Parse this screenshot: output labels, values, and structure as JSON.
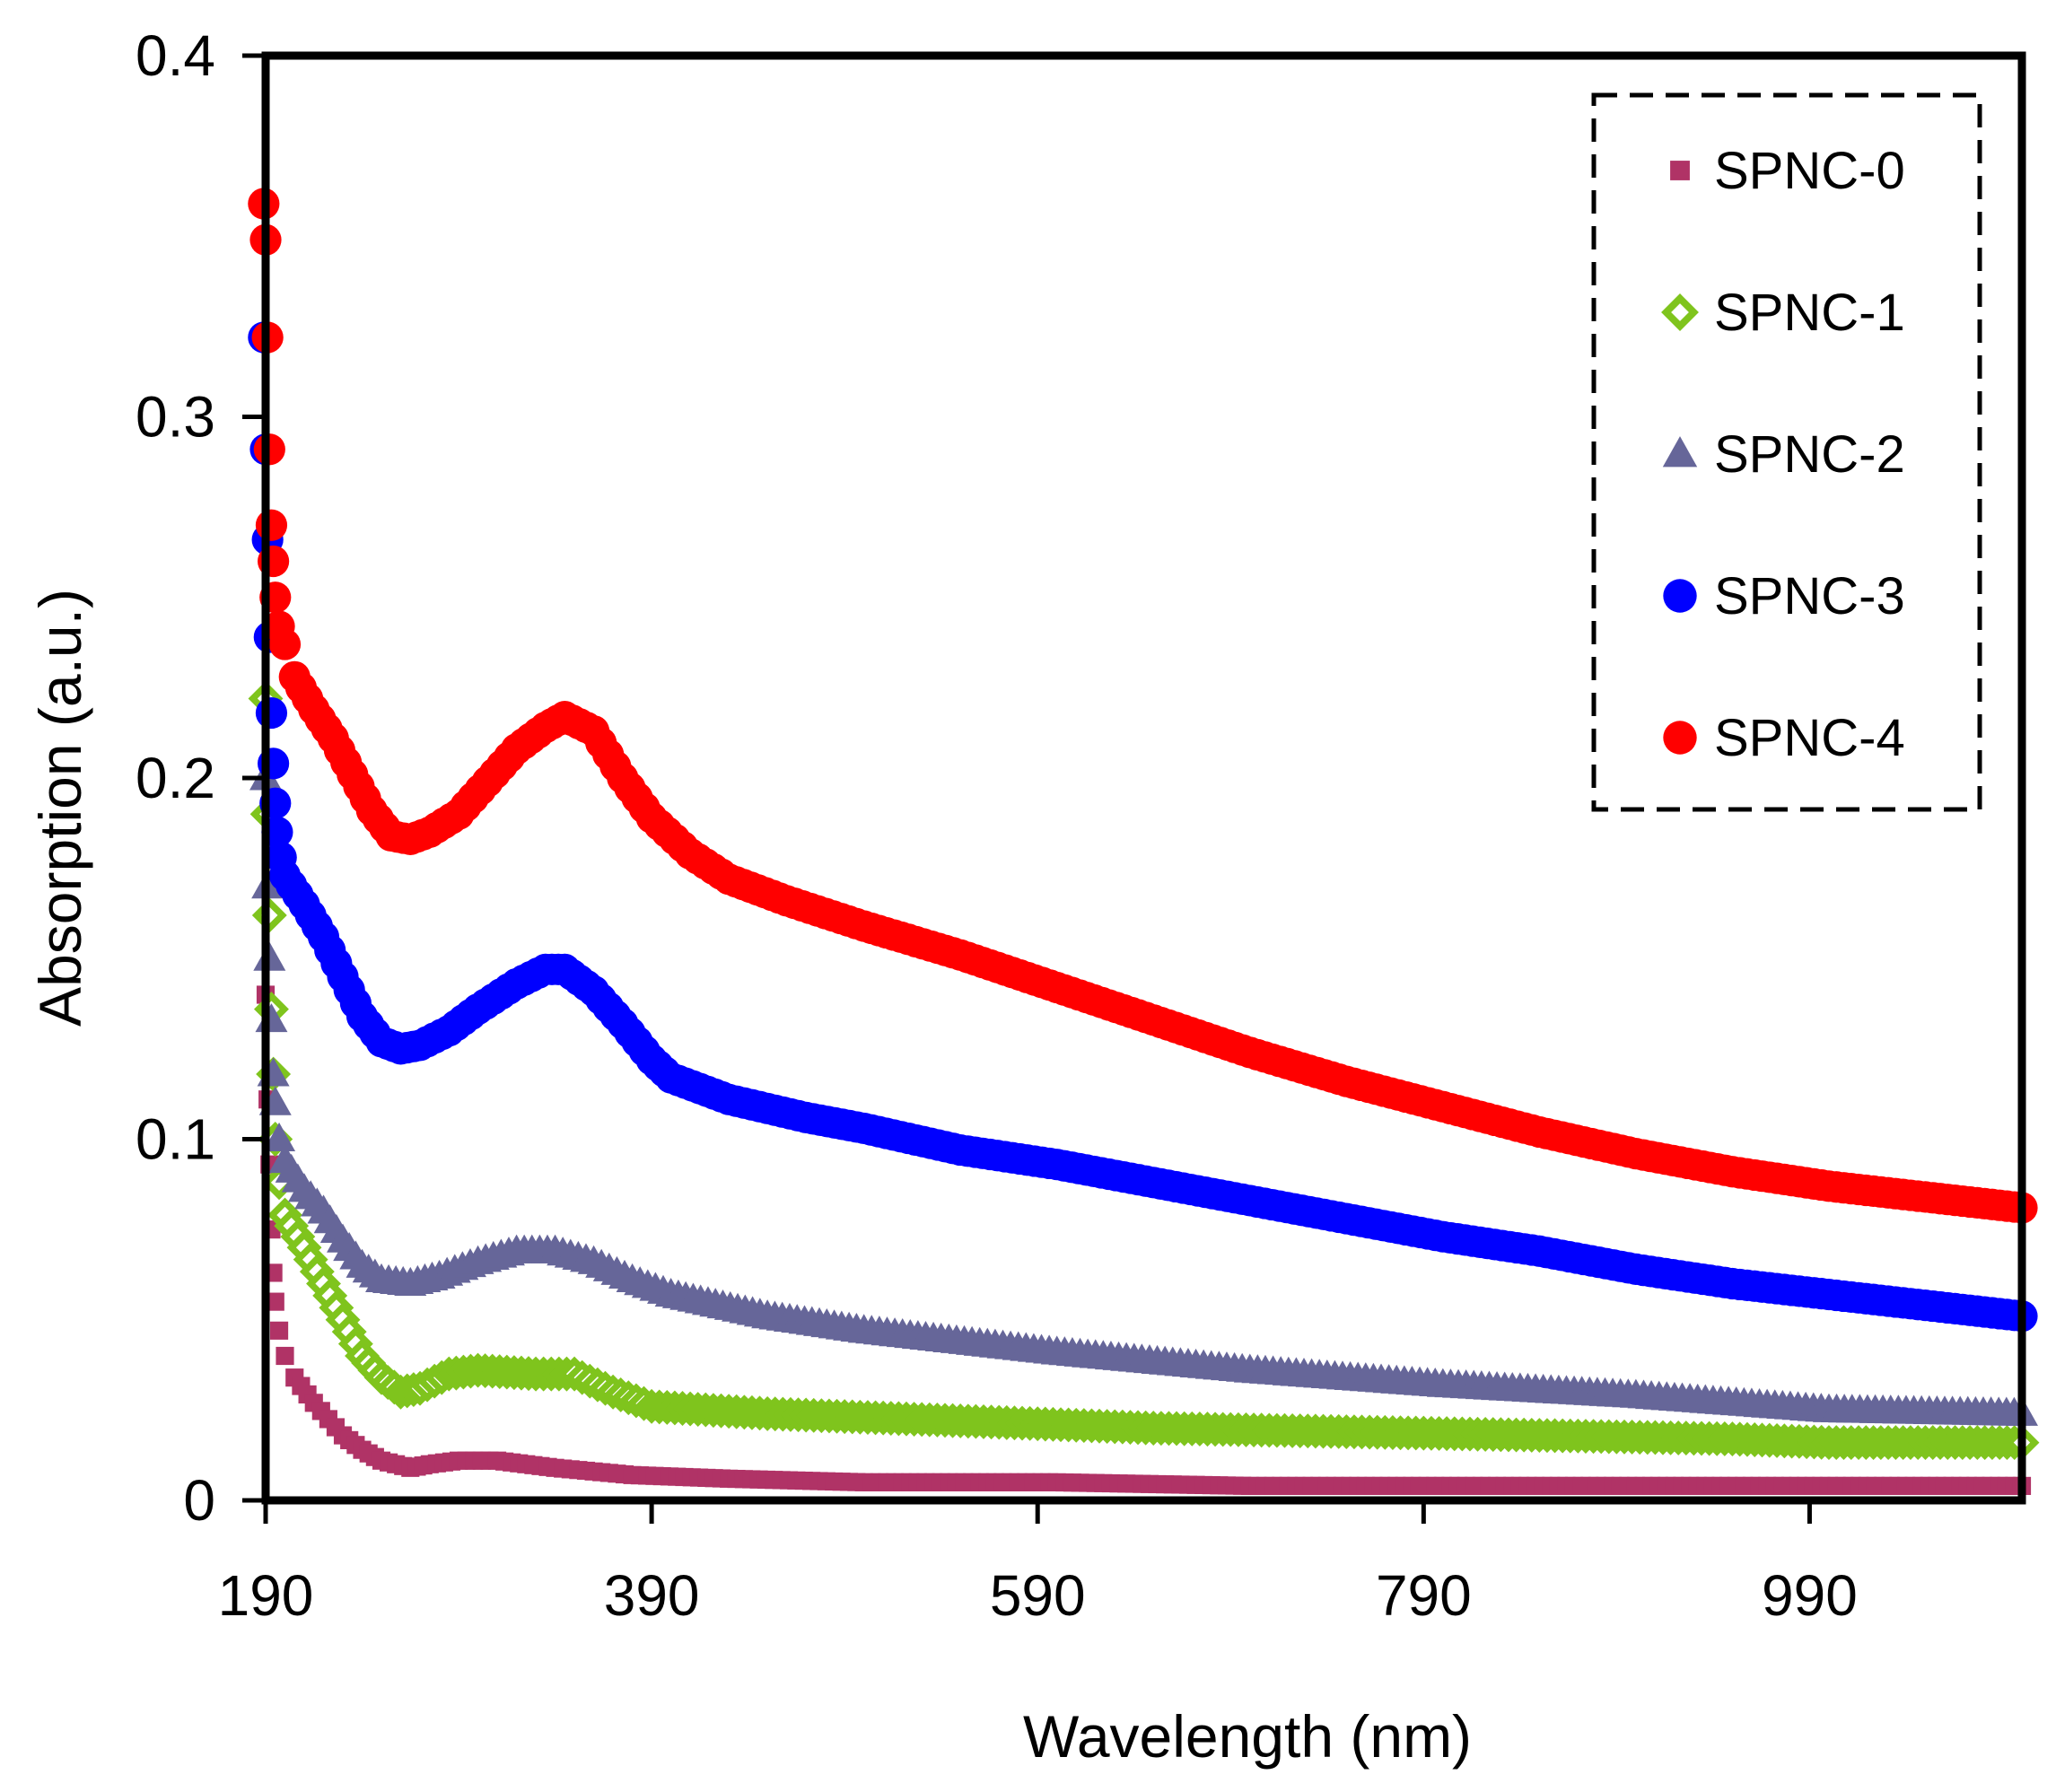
{
  "chart_data": {
    "type": "scatter",
    "title": "",
    "xlabel": "Wavelength (nm)",
    "ylabel": "Absorption (a.u.)",
    "xlim": [
      190,
      1100
    ],
    "ylim": [
      0,
      0.4
    ],
    "x_ticks": [
      190,
      390,
      590,
      790,
      990
    ],
    "x_tick_labels": [
      "190",
      "390",
      "590",
      "790",
      "990"
    ],
    "y_ticks": [
      0,
      0.1,
      0.2,
      0.3,
      0.4
    ],
    "y_tick_labels": [
      "0",
      "0.1",
      "0.2",
      "0.3",
      "0.4"
    ],
    "grid": false,
    "legend_position": "top-right",
    "series": [
      {
        "name": "SPNC-0",
        "marker": "square",
        "color": "#b03366",
        "points": [
          [
            190,
            0.14
          ],
          [
            191,
            0.111
          ],
          [
            192,
            0.093
          ],
          [
            193,
            0.075
          ],
          [
            194,
            0.063
          ],
          [
            195,
            0.055
          ],
          [
            197,
            0.047
          ],
          [
            200,
            0.04
          ],
          [
            205,
            0.034
          ],
          [
            215,
            0.027
          ],
          [
            230,
            0.018
          ],
          [
            240,
            0.014
          ],
          [
            250,
            0.011
          ],
          [
            265,
            0.009
          ],
          [
            275,
            0.01
          ],
          [
            290,
            0.011
          ],
          [
            310,
            0.011
          ],
          [
            340,
            0.009
          ],
          [
            380,
            0.007
          ],
          [
            430,
            0.006
          ],
          [
            500,
            0.005
          ],
          [
            600,
            0.005
          ],
          [
            700,
            0.004
          ],
          [
            800,
            0.004
          ],
          [
            900,
            0.004
          ],
          [
            1000,
            0.004
          ],
          [
            1100,
            0.004
          ]
        ]
      },
      {
        "name": "SPNC-1",
        "marker": "diamond",
        "color": "#7fc41d",
        "points": [
          [
            190,
            0.222
          ],
          [
            191,
            0.19
          ],
          [
            192,
            0.162
          ],
          [
            193,
            0.136
          ],
          [
            194,
            0.118
          ],
          [
            195,
            0.1
          ],
          [
            197,
            0.088
          ],
          [
            200,
            0.079
          ],
          [
            210,
            0.07
          ],
          [
            220,
            0.06
          ],
          [
            230,
            0.05
          ],
          [
            240,
            0.04
          ],
          [
            250,
            0.034
          ],
          [
            260,
            0.03
          ],
          [
            270,
            0.031
          ],
          [
            285,
            0.035
          ],
          [
            300,
            0.036
          ],
          [
            330,
            0.035
          ],
          [
            350,
            0.035
          ],
          [
            370,
            0.03
          ],
          [
            390,
            0.026
          ],
          [
            450,
            0.024
          ],
          [
            550,
            0.022
          ],
          [
            650,
            0.02
          ],
          [
            750,
            0.019
          ],
          [
            850,
            0.018
          ],
          [
            950,
            0.017
          ],
          [
            1000,
            0.016
          ],
          [
            1050,
            0.016
          ],
          [
            1100,
            0.016
          ]
        ]
      },
      {
        "name": "SPNC-2",
        "marker": "triangle",
        "color": "#666699",
        "points": [
          [
            190,
            0.2
          ],
          [
            191,
            0.17
          ],
          [
            192,
            0.15
          ],
          [
            193,
            0.133
          ],
          [
            194,
            0.118
          ],
          [
            195,
            0.11
          ],
          [
            197,
            0.1
          ],
          [
            200,
            0.094
          ],
          [
            210,
            0.086
          ],
          [
            220,
            0.08
          ],
          [
            230,
            0.072
          ],
          [
            240,
            0.065
          ],
          [
            250,
            0.061
          ],
          [
            265,
            0.06
          ],
          [
            280,
            0.062
          ],
          [
            300,
            0.066
          ],
          [
            320,
            0.069
          ],
          [
            340,
            0.069
          ],
          [
            360,
            0.066
          ],
          [
            380,
            0.061
          ],
          [
            400,
            0.057
          ],
          [
            450,
            0.051
          ],
          [
            500,
            0.047
          ],
          [
            600,
            0.041
          ],
          [
            700,
            0.036
          ],
          [
            800,
            0.032
          ],
          [
            900,
            0.029
          ],
          [
            1000,
            0.025
          ],
          [
            1100,
            0.024
          ]
        ]
      },
      {
        "name": "SPNC-3",
        "marker": "circle",
        "color": "#0000ff",
        "points": [
          [
            189,
            0.322
          ],
          [
            190,
            0.291
          ],
          [
            191,
            0.266
          ],
          [
            192,
            0.239
          ],
          [
            193,
            0.218
          ],
          [
            194,
            0.204
          ],
          [
            195,
            0.193
          ],
          [
            196,
            0.185
          ],
          [
            198,
            0.178
          ],
          [
            200,
            0.173
          ],
          [
            210,
            0.165
          ],
          [
            220,
            0.156
          ],
          [
            230,
            0.145
          ],
          [
            240,
            0.134
          ],
          [
            250,
            0.127
          ],
          [
            260,
            0.125
          ],
          [
            270,
            0.126
          ],
          [
            285,
            0.13
          ],
          [
            300,
            0.136
          ],
          [
            320,
            0.143
          ],
          [
            335,
            0.147
          ],
          [
            345,
            0.147
          ],
          [
            360,
            0.141
          ],
          [
            375,
            0.132
          ],
          [
            390,
            0.122
          ],
          [
            400,
            0.117
          ],
          [
            430,
            0.111
          ],
          [
            470,
            0.106
          ],
          [
            500,
            0.103
          ],
          [
            550,
            0.097
          ],
          [
            600,
            0.093
          ],
          [
            650,
            0.088
          ],
          [
            700,
            0.083
          ],
          [
            750,
            0.078
          ],
          [
            800,
            0.073
          ],
          [
            850,
            0.069
          ],
          [
            900,
            0.064
          ],
          [
            950,
            0.06
          ],
          [
            1000,
            0.057
          ],
          [
            1050,
            0.054
          ],
          [
            1100,
            0.051
          ]
        ]
      },
      {
        "name": "SPNC-4",
        "marker": "circle",
        "color": "#ff0000",
        "points": [
          [
            189,
            0.359
          ],
          [
            190,
            0.349
          ],
          [
            191,
            0.322
          ],
          [
            192,
            0.291
          ],
          [
            193,
            0.27
          ],
          [
            194,
            0.26
          ],
          [
            195,
            0.25
          ],
          [
            197,
            0.242
          ],
          [
            200,
            0.237
          ],
          [
            205,
            0.228
          ],
          [
            215,
            0.219
          ],
          [
            225,
            0.211
          ],
          [
            235,
            0.201
          ],
          [
            245,
            0.191
          ],
          [
            255,
            0.184
          ],
          [
            265,
            0.183
          ],
          [
            275,
            0.185
          ],
          [
            290,
            0.19
          ],
          [
            305,
            0.199
          ],
          [
            320,
            0.208
          ],
          [
            335,
            0.214
          ],
          [
            345,
            0.217
          ],
          [
            360,
            0.213
          ],
          [
            375,
            0.2
          ],
          [
            390,
            0.189
          ],
          [
            410,
            0.179
          ],
          [
            430,
            0.172
          ],
          [
            460,
            0.166
          ],
          [
            500,
            0.159
          ],
          [
            550,
            0.151
          ],
          [
            600,
            0.142
          ],
          [
            650,
            0.133
          ],
          [
            700,
            0.124
          ],
          [
            750,
            0.116
          ],
          [
            800,
            0.109
          ],
          [
            850,
            0.102
          ],
          [
            900,
            0.096
          ],
          [
            950,
            0.091
          ],
          [
            1000,
            0.087
          ],
          [
            1050,
            0.084
          ],
          [
            1100,
            0.081
          ]
        ]
      }
    ]
  }
}
